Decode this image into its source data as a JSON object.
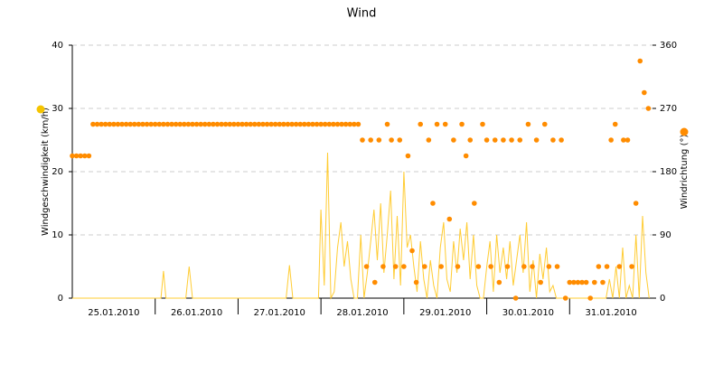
{
  "chart_data": {
    "type": "line-scatter",
    "title": "Wind",
    "ylabel": "Windgeschwindigkeit (km/h)",
    "y2label": "Windrichtung (°)",
    "xlim": [
      0,
      7
    ],
    "xticks": [
      {
        "value": 0.5,
        "label": "25.01.2010"
      },
      {
        "value": 1.5,
        "label": "26.01.2010"
      },
      {
        "value": 2.5,
        "label": "27.01.2010"
      },
      {
        "value": 3.5,
        "label": "28.01.2010"
      },
      {
        "value": 4.5,
        "label": "29.01.2010"
      },
      {
        "value": 5.5,
        "label": "30.01.2010"
      },
      {
        "value": 6.5,
        "label": "31.01.2010"
      }
    ],
    "ylim": [
      0,
      40
    ],
    "yticks": [
      0,
      10,
      20,
      30,
      40
    ],
    "y2lim": [
      0,
      360
    ],
    "y2ticks": [
      0,
      90,
      180,
      270,
      360
    ],
    "grid": true,
    "series": [
      {
        "type": "line",
        "color": "#ffcc33",
        "marker_color": "#f5c400",
        "x": [
          0,
          1.07,
          1.1,
          1.13,
          1.37,
          1.41,
          1.45,
          2.58,
          2.62,
          2.66,
          2.97,
          3,
          3.04,
          3.08,
          3.12,
          3.16,
          3.2,
          3.24,
          3.28,
          3.32,
          3.36,
          3.4,
          3.44,
          3.48,
          3.52,
          3.56,
          3.6,
          3.64,
          3.68,
          3.72,
          3.76,
          3.8,
          3.84,
          3.88,
          3.92,
          3.96,
          4,
          4.04,
          4.08,
          4.12,
          4.16,
          4.2,
          4.24,
          4.28,
          4.32,
          4.36,
          4.4,
          4.44,
          4.48,
          4.52,
          4.56,
          4.6,
          4.64,
          4.68,
          4.72,
          4.76,
          4.8,
          4.84,
          4.88,
          4.92,
          4.96,
          5,
          5.04,
          5.08,
          5.12,
          5.16,
          5.2,
          5.24,
          5.28,
          5.32,
          5.36,
          5.4,
          5.44,
          5.48,
          5.52,
          5.56,
          5.6,
          5.64,
          5.68,
          5.72,
          5.76,
          5.8,
          5.84,
          5.88,
          5.92,
          5.96,
          6,
          6.04,
          6.08,
          6.12,
          6.16,
          6.2,
          6.24,
          6.28,
          6.32,
          6.36,
          6.4,
          6.44,
          6.48,
          6.52,
          6.56,
          6.6,
          6.64,
          6.68,
          6.72,
          6.76,
          6.8,
          6.84,
          6.88,
          6.92,
          6.96
        ],
        "values": [
          0,
          0,
          4.3,
          0,
          0,
          5,
          0,
          0,
          5.2,
          0,
          0,
          14,
          2,
          23,
          0,
          1,
          8,
          12,
          5,
          9,
          3,
          0,
          0,
          10,
          0,
          4,
          9,
          14,
          6,
          15,
          4,
          10,
          17,
          3,
          13,
          2,
          20,
          8,
          10,
          5,
          1,
          9,
          3,
          0,
          6,
          2,
          0,
          8,
          12,
          3,
          1,
          9,
          4,
          11,
          6,
          12,
          3,
          10,
          2,
          0,
          0,
          5,
          9,
          1,
          10,
          4,
          8,
          3,
          9,
          2,
          6,
          10,
          4,
          12,
          1,
          6,
          0,
          7,
          3,
          8,
          1,
          2,
          0,
          0,
          0,
          0,
          0,
          0,
          0,
          0,
          0,
          0,
          0,
          0,
          0,
          0,
          0,
          0,
          3,
          0,
          5,
          0,
          8,
          0,
          2,
          0,
          10,
          0,
          13,
          4,
          0
        ]
      },
      {
        "type": "scatter",
        "axis": "y2",
        "color": "#ff8c00",
        "x": [
          0,
          0.05,
          0.1,
          0.15,
          0.2,
          0.25,
          0.3,
          0.35,
          0.4,
          0.45,
          0.5,
          0.55,
          0.6,
          0.65,
          0.7,
          0.75,
          0.8,
          0.85,
          0.9,
          0.95,
          1,
          1.05,
          1.1,
          1.15,
          1.2,
          1.25,
          1.3,
          1.35,
          1.4,
          1.45,
          1.5,
          1.55,
          1.6,
          1.65,
          1.7,
          1.75,
          1.8,
          1.85,
          1.9,
          1.95,
          2,
          2.05,
          2.1,
          2.15,
          2.2,
          2.25,
          2.3,
          2.35,
          2.4,
          2.45,
          2.5,
          2.55,
          2.6,
          2.65,
          2.7,
          2.75,
          2.8,
          2.85,
          2.9,
          2.95,
          3,
          3.05,
          3.1,
          3.15,
          3.2,
          3.25,
          3.3,
          3.35,
          3.4,
          3.45,
          3.5,
          3.55,
          3.6,
          3.65,
          3.7,
          3.75,
          3.8,
          3.85,
          3.9,
          3.95,
          4,
          4.05,
          4.1,
          4.15,
          4.2,
          4.25,
          4.3,
          4.35,
          4.4,
          4.45,
          4.5,
          4.55,
          4.6,
          4.65,
          4.7,
          4.75,
          4.8,
          4.85,
          4.9,
          4.95,
          5,
          5.05,
          5.1,
          5.15,
          5.2,
          5.25,
          5.3,
          5.35,
          5.4,
          5.45,
          5.5,
          5.55,
          5.6,
          5.65,
          5.7,
          5.75,
          5.8,
          5.85,
          5.9,
          5.95,
          6,
          6.05,
          6.1,
          6.15,
          6.2,
          6.25,
          6.3,
          6.35,
          6.4,
          6.45,
          6.5,
          6.55,
          6.6,
          6.65,
          6.7,
          6.75,
          6.8,
          6.85,
          6.9,
          6.95
        ],
        "values": [
          202.5,
          202.5,
          202.5,
          202.5,
          202.5,
          247.5,
          247.5,
          247.5,
          247.5,
          247.5,
          247.5,
          247.5,
          247.5,
          247.5,
          247.5,
          247.5,
          247.5,
          247.5,
          247.5,
          247.5,
          247.5,
          247.5,
          247.5,
          247.5,
          247.5,
          247.5,
          247.5,
          247.5,
          247.5,
          247.5,
          247.5,
          247.5,
          247.5,
          247.5,
          247.5,
          247.5,
          247.5,
          247.5,
          247.5,
          247.5,
          247.5,
          247.5,
          247.5,
          247.5,
          247.5,
          247.5,
          247.5,
          247.5,
          247.5,
          247.5,
          247.5,
          247.5,
          247.5,
          247.5,
          247.5,
          247.5,
          247.5,
          247.5,
          247.5,
          247.5,
          247.5,
          247.5,
          247.5,
          247.5,
          247.5,
          247.5,
          247.5,
          247.5,
          247.5,
          247.5,
          225,
          45,
          225,
          22.5,
          225,
          45,
          247.5,
          225,
          45,
          225,
          45,
          202.5,
          67.5,
          22.5,
          247.5,
          45,
          225,
          135,
          247.5,
          45,
          247.5,
          112.5,
          225,
          45,
          247.5,
          202.5,
          225,
          135,
          45,
          247.5,
          225,
          45,
          225,
          22.5,
          225,
          45,
          225,
          0,
          225,
          45,
          247.5,
          45,
          225,
          22.5,
          247.5,
          45,
          225,
          45,
          225,
          0,
          22.5,
          22.5,
          22.5,
          22.5,
          22.5,
          0,
          22.5,
          45,
          22.5,
          45,
          225,
          247.5,
          45,
          225,
          225,
          45,
          135,
          337.5,
          292.5,
          270
        ]
      }
    ]
  }
}
